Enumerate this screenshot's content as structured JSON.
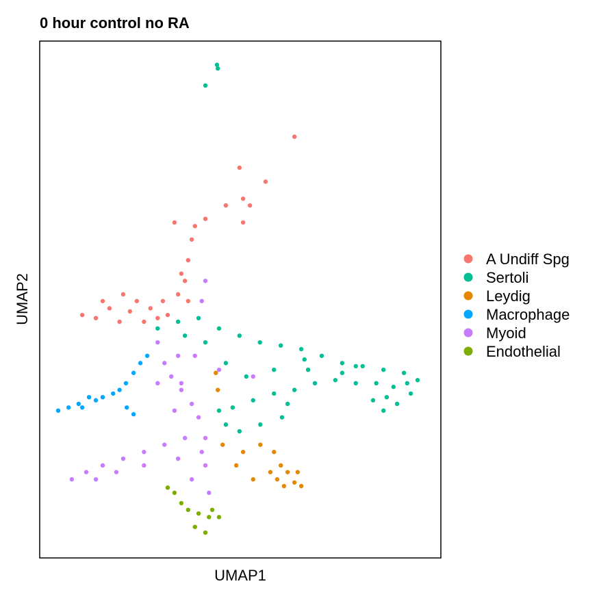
{
  "chart_data": {
    "type": "scatter",
    "title": "0 hour control no RA",
    "xlabel": "UMAP1",
    "ylabel": "UMAP2",
    "xlim": [
      0,
      100
    ],
    "ylim": [
      0,
      100
    ],
    "grid": false,
    "ticks": false,
    "legend_position": "right",
    "series": [
      {
        "name": "A Undiff Spg",
        "color": "#F8766D",
        "points": [
          [
            10.6,
            47.0
          ],
          [
            14.0,
            46.4
          ],
          [
            17.4,
            48.3
          ],
          [
            20.8,
            51.0
          ],
          [
            24.2,
            49.7
          ],
          [
            27.6,
            48.3
          ],
          [
            30.7,
            49.7
          ],
          [
            34.5,
            51.0
          ],
          [
            36.2,
            53.6
          ],
          [
            37.0,
            57.6
          ],
          [
            37.9,
            61.6
          ],
          [
            38.7,
            64.2
          ],
          [
            41.3,
            65.6
          ],
          [
            33.6,
            64.9
          ],
          [
            46.4,
            68.2
          ],
          [
            50.7,
            69.5
          ],
          [
            52.4,
            68.2
          ],
          [
            49.8,
            75.5
          ],
          [
            56.3,
            72.8
          ],
          [
            63.5,
            81.5
          ],
          [
            19.9,
            45.7
          ],
          [
            26.0,
            45.7
          ],
          [
            31.9,
            47.0
          ],
          [
            22.5,
            47.7
          ],
          [
            15.7,
            49.7
          ],
          [
            35.3,
            55.0
          ],
          [
            29.4,
            46.4
          ],
          [
            37.0,
            49.7
          ],
          [
            50.7,
            64.9
          ]
        ]
      },
      {
        "name": "Sertoli",
        "color": "#00BF95",
        "points": [
          [
            44.2,
            95.4
          ],
          [
            41.3,
            91.4
          ],
          [
            44.4,
            94.7
          ],
          [
            29.4,
            44.4
          ],
          [
            34.5,
            45.7
          ],
          [
            39.6,
            46.4
          ],
          [
            44.7,
            44.4
          ],
          [
            49.8,
            43.0
          ],
          [
            54.9,
            41.7
          ],
          [
            60.1,
            41.1
          ],
          [
            65.2,
            40.4
          ],
          [
            70.3,
            39.1
          ],
          [
            75.4,
            37.7
          ],
          [
            80.5,
            37.1
          ],
          [
            85.7,
            36.4
          ],
          [
            90.8,
            35.8
          ],
          [
            94.2,
            34.4
          ],
          [
            92.5,
            31.8
          ],
          [
            89.1,
            29.8
          ],
          [
            85.7,
            28.5
          ],
          [
            83.1,
            30.5
          ],
          [
            83.9,
            33.8
          ],
          [
            88.2,
            33.1
          ],
          [
            78.8,
            33.8
          ],
          [
            73.7,
            34.4
          ],
          [
            68.6,
            33.8
          ],
          [
            63.5,
            32.5
          ],
          [
            58.4,
            31.8
          ],
          [
            53.2,
            30.5
          ],
          [
            48.1,
            29.1
          ],
          [
            46.4,
            25.8
          ],
          [
            49.8,
            24.5
          ],
          [
            55.0,
            25.8
          ],
          [
            60.4,
            27.2
          ],
          [
            44.7,
            28.5
          ],
          [
            51.5,
            35.1
          ],
          [
            46.4,
            37.7
          ],
          [
            41.3,
            41.7
          ],
          [
            36.2,
            43.0
          ],
          [
            58.4,
            36.4
          ],
          [
            66.9,
            36.4
          ],
          [
            75.4,
            35.8
          ],
          [
            61.8,
            29.8
          ],
          [
            66.0,
            38.4
          ],
          [
            78.8,
            37.1
          ],
          [
            91.6,
            33.8
          ],
          [
            86.5,
            31.1
          ]
        ]
      },
      {
        "name": "Leydig",
        "color": "#E58700",
        "points": [
          [
            43.9,
            35.8
          ],
          [
            44.4,
            32.5
          ],
          [
            45.6,
            21.9
          ],
          [
            49.0,
            17.9
          ],
          [
            53.2,
            15.2
          ],
          [
            55.0,
            21.9
          ],
          [
            58.4,
            20.5
          ],
          [
            60.1,
            17.9
          ],
          [
            61.8,
            16.6
          ],
          [
            64.3,
            16.6
          ],
          [
            63.5,
            14.6
          ],
          [
            65.2,
            13.9
          ],
          [
            59.2,
            15.2
          ],
          [
            57.5,
            16.6
          ],
          [
            50.7,
            20.5
          ],
          [
            60.9,
            13.9
          ]
        ]
      },
      {
        "name": "Macrophage",
        "color": "#00A9FF",
        "points": [
          [
            4.6,
            28.5
          ],
          [
            7.2,
            29.1
          ],
          [
            9.7,
            29.8
          ],
          [
            12.3,
            31.1
          ],
          [
            15.7,
            31.1
          ],
          [
            18.3,
            31.8
          ],
          [
            19.9,
            32.5
          ],
          [
            21.5,
            33.8
          ],
          [
            23.4,
            35.8
          ],
          [
            25.1,
            37.7
          ],
          [
            26.8,
            39.1
          ],
          [
            21.7,
            29.1
          ],
          [
            23.4,
            27.8
          ],
          [
            10.6,
            29.1
          ],
          [
            14.0,
            30.5
          ]
        ]
      },
      {
        "name": "Myoid",
        "color": "#C77CFF",
        "points": [
          [
            41.3,
            53.6
          ],
          [
            40.4,
            49.7
          ],
          [
            29.4,
            41.7
          ],
          [
            31.1,
            37.7
          ],
          [
            32.8,
            35.1
          ],
          [
            35.3,
            32.5
          ],
          [
            37.9,
            29.8
          ],
          [
            39.6,
            27.2
          ],
          [
            41.3,
            23.2
          ],
          [
            41.3,
            17.9
          ],
          [
            42.2,
            12.6
          ],
          [
            36.2,
            23.2
          ],
          [
            31.1,
            21.9
          ],
          [
            26.0,
            20.5
          ],
          [
            20.8,
            19.2
          ],
          [
            15.7,
            17.9
          ],
          [
            11.6,
            16.6
          ],
          [
            8.0,
            15.2
          ],
          [
            14.0,
            15.2
          ],
          [
            19.1,
            16.6
          ],
          [
            26.0,
            17.9
          ],
          [
            34.5,
            19.2
          ],
          [
            37.9,
            15.2
          ],
          [
            44.7,
            36.4
          ],
          [
            53.2,
            35.1
          ],
          [
            38.7,
            39.1
          ],
          [
            34.5,
            39.1
          ],
          [
            29.4,
            33.8
          ],
          [
            33.6,
            28.5
          ],
          [
            40.4,
            20.5
          ],
          [
            35.3,
            33.8
          ]
        ]
      },
      {
        "name": "Endothelial",
        "color": "#7CAE00",
        "points": [
          [
            31.9,
            13.6
          ],
          [
            33.6,
            12.6
          ],
          [
            35.3,
            10.6
          ],
          [
            37.0,
            9.3
          ],
          [
            39.6,
            8.6
          ],
          [
            42.2,
            7.9
          ],
          [
            44.7,
            7.9
          ],
          [
            38.7,
            6.0
          ],
          [
            41.3,
            4.9
          ],
          [
            43.0,
            9.3
          ]
        ]
      }
    ]
  }
}
